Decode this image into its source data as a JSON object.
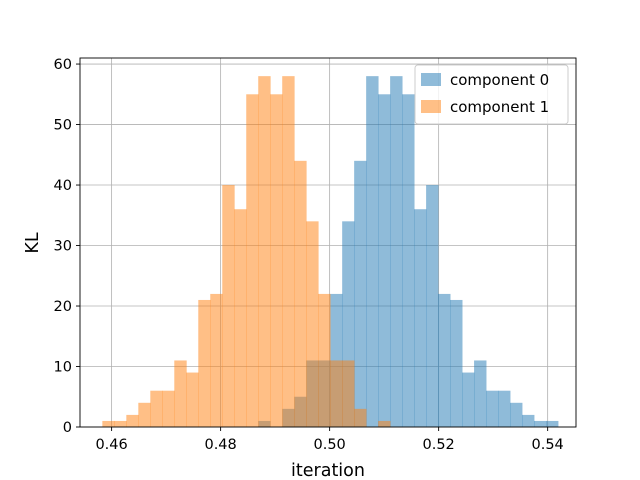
{
  "chart_data": {
    "type": "histogram",
    "title": "",
    "xlabel": "iteration",
    "ylabel": "KL",
    "xlim": [
      0.4542,
      0.5452
    ],
    "ylim": [
      0,
      61
    ],
    "xticks": [
      0.46,
      0.48,
      0.5,
      0.52,
      0.54
    ],
    "xtick_labels": [
      "0.46",
      "0.48",
      "0.50",
      "0.52",
      "0.54"
    ],
    "yticks": [
      0,
      10,
      20,
      30,
      40,
      50,
      60
    ],
    "ytick_labels": [
      "0",
      "10",
      "20",
      "30",
      "40",
      "50",
      "60"
    ],
    "grid": true,
    "legend_position": "top-right",
    "series": [
      {
        "name": "component 0",
        "color": "#1f77b4",
        "alpha": 0.5,
        "bins": [
          [
            0.4869,
            0.4891,
            1
          ],
          [
            0.4913,
            0.4935,
            3
          ],
          [
            0.4935,
            0.4957,
            5
          ],
          [
            0.4957,
            0.4979,
            11
          ],
          [
            0.4979,
            0.5001,
            11
          ],
          [
            0.5001,
            0.5023,
            22
          ],
          [
            0.5023,
            0.5045,
            34
          ],
          [
            0.5045,
            0.5067,
            44
          ],
          [
            0.5067,
            0.5089,
            58
          ],
          [
            0.5089,
            0.5111,
            55
          ],
          [
            0.5111,
            0.5133,
            58
          ],
          [
            0.5133,
            0.5155,
            55
          ],
          [
            0.5155,
            0.5177,
            36
          ],
          [
            0.5177,
            0.5199,
            40
          ],
          [
            0.5199,
            0.5221,
            22
          ],
          [
            0.5221,
            0.5243,
            21
          ],
          [
            0.5243,
            0.5265,
            9
          ],
          [
            0.5265,
            0.5287,
            11
          ],
          [
            0.5287,
            0.5309,
            6
          ],
          [
            0.5309,
            0.5331,
            6
          ],
          [
            0.5331,
            0.5353,
            4
          ],
          [
            0.5353,
            0.5375,
            2
          ],
          [
            0.5375,
            0.5397,
            1
          ],
          [
            0.5397,
            0.5419,
            1
          ]
        ]
      },
      {
        "name": "component 1",
        "color": "#ff7f0e",
        "alpha": 0.5,
        "bins": [
          [
            0.4583,
            0.4605,
            1
          ],
          [
            0.4605,
            0.4627,
            1
          ],
          [
            0.4627,
            0.4649,
            2
          ],
          [
            0.4649,
            0.4671,
            4
          ],
          [
            0.4671,
            0.4693,
            6
          ],
          [
            0.4693,
            0.4715,
            6
          ],
          [
            0.4715,
            0.4737,
            11
          ],
          [
            0.4737,
            0.4759,
            9
          ],
          [
            0.4759,
            0.4781,
            21
          ],
          [
            0.4781,
            0.4803,
            22
          ],
          [
            0.4803,
            0.4825,
            40
          ],
          [
            0.4825,
            0.4847,
            36
          ],
          [
            0.4847,
            0.4869,
            55
          ],
          [
            0.4869,
            0.4891,
            58
          ],
          [
            0.4891,
            0.4913,
            55
          ],
          [
            0.4913,
            0.4935,
            58
          ],
          [
            0.4935,
            0.4957,
            44
          ],
          [
            0.4957,
            0.4979,
            34
          ],
          [
            0.4979,
            0.5001,
            22
          ],
          [
            0.5001,
            0.5023,
            11
          ],
          [
            0.5023,
            0.5045,
            11
          ],
          [
            0.5045,
            0.5067,
            3
          ],
          [
            0.5089,
            0.5111,
            1
          ]
        ]
      }
    ]
  }
}
